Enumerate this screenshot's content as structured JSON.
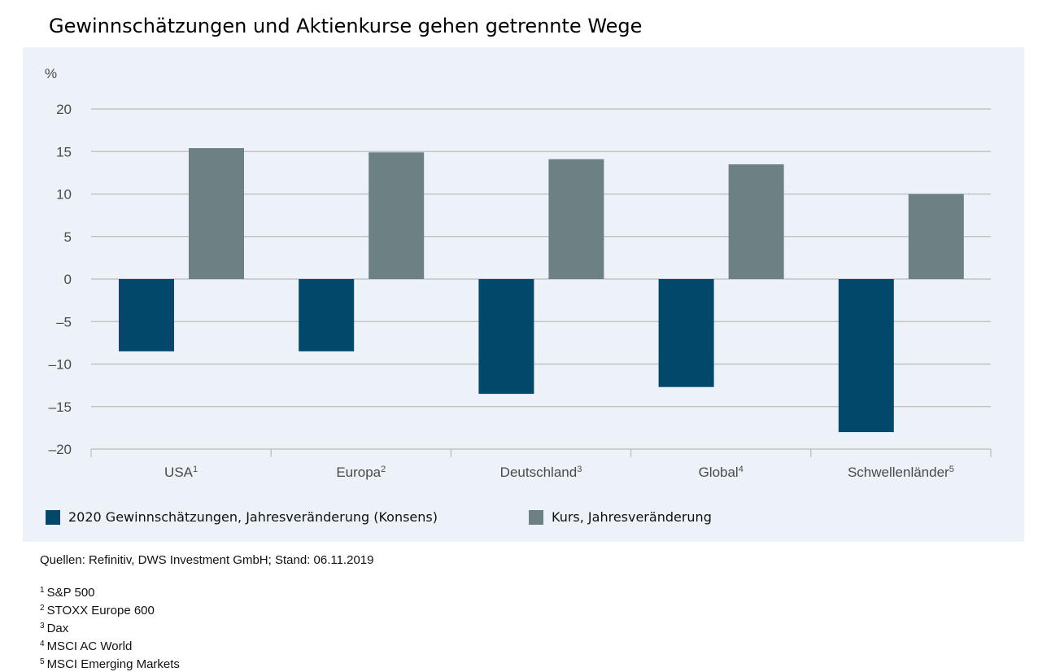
{
  "title": "Gewinnschätzungen und Aktienkurse gehen getrennte Wege",
  "colors": {
    "panel_bg": "#edf2f9",
    "series1": "#01486b",
    "series2": "#6d8084",
    "grid": "#b8bcc0",
    "text": "#4a4a4a"
  },
  "chart_data": {
    "type": "bar",
    "ylabel": "%",
    "ylim": [
      -20,
      20
    ],
    "yticks": [
      20,
      15,
      10,
      5,
      0,
      -5,
      -10,
      -15,
      -20
    ],
    "ytick_labels": [
      "20",
      "15",
      "10",
      "5",
      "0",
      "–5",
      "–10",
      "–15",
      "–20"
    ],
    "categories": [
      {
        "label": "USA",
        "sup": "1"
      },
      {
        "label": "Europa",
        "sup": "2"
      },
      {
        "label": "Deutschland",
        "sup": "3"
      },
      {
        "label": "Global",
        "sup": "4"
      },
      {
        "label": "Schwellenländer",
        "sup": "5"
      }
    ],
    "series": [
      {
        "name": "2020 Gewinnschätzungen, Jahresveränderung (Konsens)",
        "color": "#01486b",
        "values": [
          -8.5,
          -8.5,
          -13.5,
          -12.7,
          -18.0
        ]
      },
      {
        "name": "Kurs, Jahresveränderung",
        "color": "#6d8084",
        "values": [
          15.4,
          14.9,
          14.1,
          13.5,
          10.0
        ]
      }
    ],
    "grid": true,
    "legend_position": "bottom"
  },
  "source": "Quellen: Refinitiv, DWS Investment GmbH; Stand: 06.11.2019",
  "footnotes": [
    {
      "num": "1",
      "text": "S&P 500"
    },
    {
      "num": "2",
      "text": "STOXX Europe 600"
    },
    {
      "num": "3",
      "text": "Dax"
    },
    {
      "num": "4",
      "text": "MSCI AC World"
    },
    {
      "num": "5",
      "text": "MSCI Emerging Markets"
    }
  ]
}
